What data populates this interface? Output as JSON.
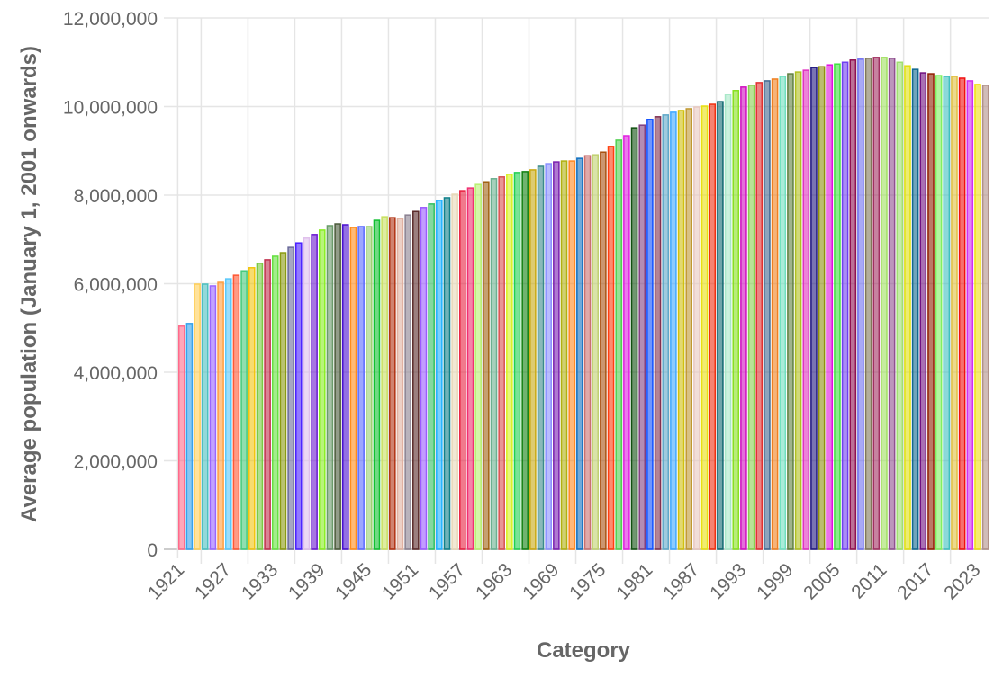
{
  "chart_data": {
    "type": "bar",
    "title": "",
    "xlabel": "Category",
    "ylabel": "Average population (January 1, 2001 onwards)",
    "ylim": [
      0,
      12000000
    ],
    "yticks": [
      0,
      2000000,
      4000000,
      6000000,
      8000000,
      10000000,
      12000000
    ],
    "ytick_labels": [
      "0",
      "2,000,000",
      "4,000,000",
      "6,000,000",
      "8,000,000",
      "10,000,000",
      "12,000,000"
    ],
    "xtick_labels": [
      "1921",
      "1927",
      "1933",
      "1939",
      "1945",
      "1951",
      "1957",
      "1963",
      "1969",
      "1975",
      "1981",
      "1987",
      "1993",
      "1999",
      "2005",
      "2011",
      "2017",
      "2023"
    ],
    "grid": true,
    "legend": "none",
    "categories": [
      1921,
      1922,
      1923,
      1924,
      1925,
      1926,
      1927,
      1928,
      1929,
      1930,
      1931,
      1932,
      1933,
      1934,
      1935,
      1936,
      1937,
      1938,
      1939,
      1940,
      1941,
      1942,
      1943,
      1944,
      1945,
      1946,
      1947,
      1948,
      1949,
      1950,
      1951,
      1952,
      1953,
      1954,
      1955,
      1956,
      1957,
      1958,
      1959,
      1960,
      1961,
      1962,
      1963,
      1964,
      1965,
      1966,
      1967,
      1968,
      1969,
      1970,
      1971,
      1972,
      1973,
      1974,
      1975,
      1976,
      1977,
      1978,
      1979,
      1980,
      1981,
      1982,
      1983,
      1984,
      1985,
      1986,
      1987,
      1988,
      1989,
      1990,
      1991,
      1992,
      1993,
      1994,
      1995,
      1996,
      1997,
      1998,
      1999,
      2000,
      2001,
      2002,
      2003,
      2004,
      2005,
      2006,
      2007,
      2008,
      2009,
      2010,
      2011,
      2012,
      2013,
      2014,
      2015,
      2016,
      2017,
      2018,
      2019,
      2020,
      2021,
      2022,
      2023,
      2024
    ],
    "values": [
      5040000,
      5100000,
      5990000,
      5990000,
      5950000,
      6030000,
      6110000,
      6190000,
      6290000,
      6360000,
      6460000,
      6540000,
      6620000,
      6700000,
      6820000,
      6920000,
      7030000,
      7110000,
      7210000,
      7310000,
      7350000,
      7330000,
      7270000,
      7290000,
      7290000,
      7430000,
      7510000,
      7490000,
      7470000,
      7550000,
      7630000,
      7720000,
      7800000,
      7880000,
      7940000,
      8020000,
      8100000,
      8160000,
      8240000,
      8300000,
      8370000,
      8410000,
      8470000,
      8510000,
      8530000,
      8570000,
      8650000,
      8710000,
      8750000,
      8770000,
      8770000,
      8830000,
      8890000,
      8910000,
      8970000,
      9100000,
      9240000,
      9340000,
      9520000,
      9580000,
      9710000,
      9770000,
      9810000,
      9870000,
      9910000,
      9950000,
      9990000,
      10010000,
      10050000,
      10110000,
      10270000,
      10360000,
      10440000,
      10480000,
      10540000,
      10580000,
      10620000,
      10680000,
      10740000,
      10780000,
      10820000,
      10880000,
      10900000,
      10940000,
      10960000,
      11000000,
      11050000,
      11070000,
      11090000,
      11110000,
      11110000,
      11090000,
      11000000,
      10920000,
      10840000,
      10760000,
      10740000,
      10700000,
      10680000,
      10680000,
      10640000,
      10580000,
      10500000,
      10480000
    ],
    "colors": [
      "#ff6b8a",
      "#36a2eb",
      "#ffce56",
      "#4bc0c0",
      "#9966ff",
      "#ff9f40",
      "#5ac8fa",
      "#ff5733",
      "#45c97a",
      "#f1c40f",
      "#7ac943",
      "#c0304d",
      "#66e040",
      "#8a9a10",
      "#6a6a9a",
      "#4a20ff",
      "#e0c0ec",
      "#6a1ad0",
      "#88ee22",
      "#6a9a6a",
      "#4a5a3a",
      "#4a10d0",
      "#ff8c1a",
      "#5a6aff",
      "#9ad070",
      "#10c030",
      "#c8e060",
      "#b03010",
      "#e0b0a0",
      "#8a8090",
      "#5a2a2a",
      "#9a5aff",
      "#30c060",
      "#20b0ff",
      "#10808a",
      "#e8d8b8",
      "#e82040",
      "#f03070",
      "#b8f070",
      "#a06010",
      "#6ab090",
      "#d85050",
      "#d8f020",
      "#20d050",
      "#108010",
      "#c8a810",
      "#3a8a8a",
      "#8a90ff",
      "#7a20b0",
      "#b0b010",
      "#ff8820",
      "#1070c0",
      "#c87070",
      "#c0d070",
      "#a85010",
      "#ff4010",
      "#50d050",
      "#e020e0",
      "#105010",
      "#804080",
      "#1050ff",
      "#803050",
      "#60a8c8",
      "#40a8ff",
      "#d0c010",
      "#c09830",
      "#e8c8c0",
      "#e8e010",
      "#f03010",
      "#106870",
      "#a8e8c8",
      "#88e020",
      "#d010c0",
      "#88d050",
      "#e03030",
      "#406890",
      "#f08020",
      "#70e0c0",
      "#608040",
      "#b0c020",
      "#e030c0",
      "#201880",
      "#909010",
      "#e010e0",
      "#40e040",
      "#7040f0",
      "#901050",
      "#7070f0",
      "#807858",
      "#a03060",
      "#a0e060",
      "#905090",
      "#a0e070",
      "#e0e010",
      "#106890",
      "#701080",
      "#902000",
      "#80f060",
      "#40c0c0",
      "#e0c040",
      "#f01010",
      "#d030f0",
      "#f0e010",
      "#b09088"
    ]
  }
}
